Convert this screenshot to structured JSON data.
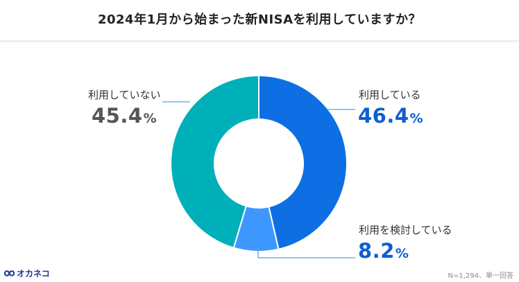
{
  "title": "2024年1月から始まった新NISAを利用していますか？",
  "chart_data": {
    "type": "pie",
    "categories": [
      "利用している",
      "利用を検討している",
      "利用していない"
    ],
    "values": [
      46.4,
      8.2,
      45.4
    ],
    "unit": "%",
    "labels": [
      {
        "text": "利用している",
        "value": "46.4",
        "unit": "%"
      },
      {
        "text": "利用を検討している",
        "value": "8.2",
        "unit": "%"
      },
      {
        "text": "利用していない",
        "value": "45.4",
        "unit": "%"
      }
    ],
    "colors": [
      "#0d6fe3",
      "#3d97ff",
      "#00b0b9"
    ]
  },
  "footnote": "N=1,294、単一回答",
  "logo": {
    "text": "オカネコ",
    "icon": "logo-infinity-icon",
    "color": "#1a3b8a"
  }
}
